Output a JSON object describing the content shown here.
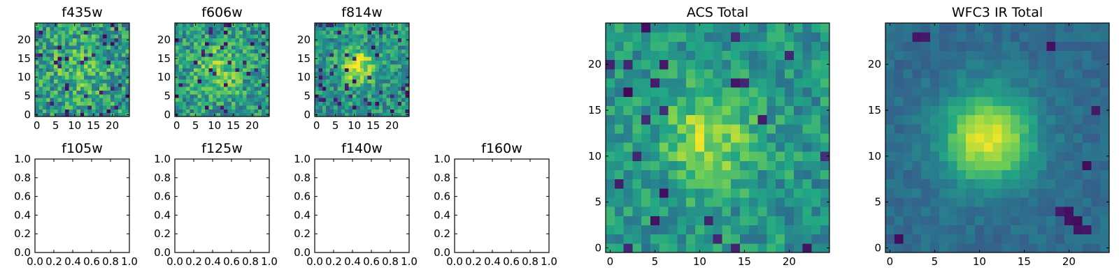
{
  "figure": {
    "background": "#ffffff",
    "colormap": "viridis",
    "colormap_stops": [
      "#440154",
      "#414487",
      "#2a788e",
      "#22a884",
      "#7ad151",
      "#fde725"
    ]
  },
  "chart_data": [
    {
      "type": "heatmap",
      "title": "f435w",
      "grid": false,
      "xlim": [
        -0.5,
        24.5
      ],
      "ylim": [
        -0.5,
        24.5
      ],
      "xticks": [
        0,
        5,
        10,
        15,
        20
      ],
      "yticks": [
        0,
        5,
        10,
        15,
        20
      ],
      "shape": [
        25,
        25
      ],
      "source": 0.15,
      "noise": 0.5,
      "deep_pixel_fraction": 0.05,
      "peak": [
        11,
        12
      ],
      "peak_width": 6,
      "value_range": [
        0,
        1
      ]
    },
    {
      "type": "heatmap",
      "title": "f606w",
      "grid": false,
      "xlim": [
        -0.5,
        24.5
      ],
      "ylim": [
        -0.5,
        24.5
      ],
      "xticks": [
        0,
        5,
        10,
        15,
        20
      ],
      "yticks": [
        0,
        5,
        10,
        15,
        20
      ],
      "shape": [
        25,
        25
      ],
      "source": 0.25,
      "noise": 0.45,
      "deep_pixel_fraction": 0.05,
      "peak": [
        11,
        12
      ],
      "peak_width": 5,
      "value_range": [
        0,
        1
      ]
    },
    {
      "type": "heatmap",
      "title": "f814w",
      "grid": false,
      "xlim": [
        -0.5,
        24.5
      ],
      "ylim": [
        -0.5,
        24.5
      ],
      "xticks": [
        0,
        5,
        10,
        15,
        20
      ],
      "yticks": [
        0,
        5,
        10,
        15,
        20
      ],
      "shape": [
        25,
        25
      ],
      "source": 0.45,
      "noise": 0.4,
      "deep_pixel_fraction": 0.06,
      "peak": [
        11,
        13
      ],
      "peak_width": 3,
      "value_range": [
        0,
        1
      ]
    },
    {
      "type": "heatmap",
      "title": "f105w",
      "grid": false,
      "empty": true,
      "xlim": [
        0,
        1
      ],
      "ylim": [
        0,
        1
      ],
      "xticks": [
        "0.0",
        "0.2",
        "0.4",
        "0.6",
        "0.8",
        "1.0"
      ],
      "yticks": [
        "0.0",
        "0.2",
        "0.4",
        "0.6",
        "0.8",
        "1.0"
      ]
    },
    {
      "type": "heatmap",
      "title": "f125w",
      "grid": false,
      "empty": true,
      "xlim": [
        0,
        1
      ],
      "ylim": [
        0,
        1
      ],
      "xticks": [
        "0.0",
        "0.2",
        "0.4",
        "0.6",
        "0.8",
        "1.0"
      ],
      "yticks": [
        "0.0",
        "0.2",
        "0.4",
        "0.6",
        "0.8",
        "1.0"
      ]
    },
    {
      "type": "heatmap",
      "title": "f140w",
      "grid": false,
      "empty": true,
      "xlim": [
        0,
        1
      ],
      "ylim": [
        0,
        1
      ],
      "xticks": [
        "0.0",
        "0.2",
        "0.4",
        "0.6",
        "0.8",
        "1.0"
      ],
      "yticks": [
        "0.0",
        "0.2",
        "0.4",
        "0.6",
        "0.8",
        "1.0"
      ]
    },
    {
      "type": "heatmap",
      "title": "f160w",
      "grid": false,
      "empty": true,
      "xlim": [
        0,
        1
      ],
      "ylim": [
        0,
        1
      ],
      "xticks": [
        "0.0",
        "0.2",
        "0.4",
        "0.6",
        "0.8",
        "1.0"
      ],
      "yticks": [
        "0.0",
        "0.2",
        "0.4",
        "0.6",
        "0.8",
        "1.0"
      ]
    },
    {
      "type": "heatmap",
      "title": "ACS Total",
      "grid": false,
      "xlim": [
        -0.5,
        24.5
      ],
      "ylim": [
        -0.5,
        24.5
      ],
      "xticks": [
        0,
        5,
        10,
        15,
        20
      ],
      "yticks": [
        0,
        5,
        10,
        15,
        20
      ],
      "shape": [
        25,
        25
      ],
      "source": 0.35,
      "noise": 0.32,
      "deep_pixel_fraction": 0.03,
      "peak": [
        11,
        12
      ],
      "peak_width": 3.5,
      "value_range": [
        0,
        1
      ]
    },
    {
      "type": "heatmap",
      "title": "WFC3 IR Total",
      "grid": false,
      "xlim": [
        -0.5,
        24.5
      ],
      "ylim": [
        -0.5,
        24.5
      ],
      "xticks": [
        0,
        5,
        10,
        15,
        20
      ],
      "yticks": [
        0,
        5,
        10,
        15,
        20
      ],
      "shape": [
        25,
        25
      ],
      "source": 0.62,
      "noise": 0.12,
      "deep_pixel_fraction": 0.0,
      "base": 0.35,
      "peak": [
        11,
        12
      ],
      "peak_width": 3.5,
      "value_range": [
        0,
        1
      ],
      "dark_spots": [
        [
          19,
          4
        ],
        [
          20,
          4
        ],
        [
          20,
          3
        ],
        [
          21,
          3
        ],
        [
          21,
          2
        ],
        [
          22,
          2
        ],
        [
          3,
          23
        ],
        [
          4,
          23
        ],
        [
          23,
          15
        ],
        [
          22,
          9
        ],
        [
          18,
          22
        ],
        [
          1,
          1
        ]
      ]
    }
  ]
}
